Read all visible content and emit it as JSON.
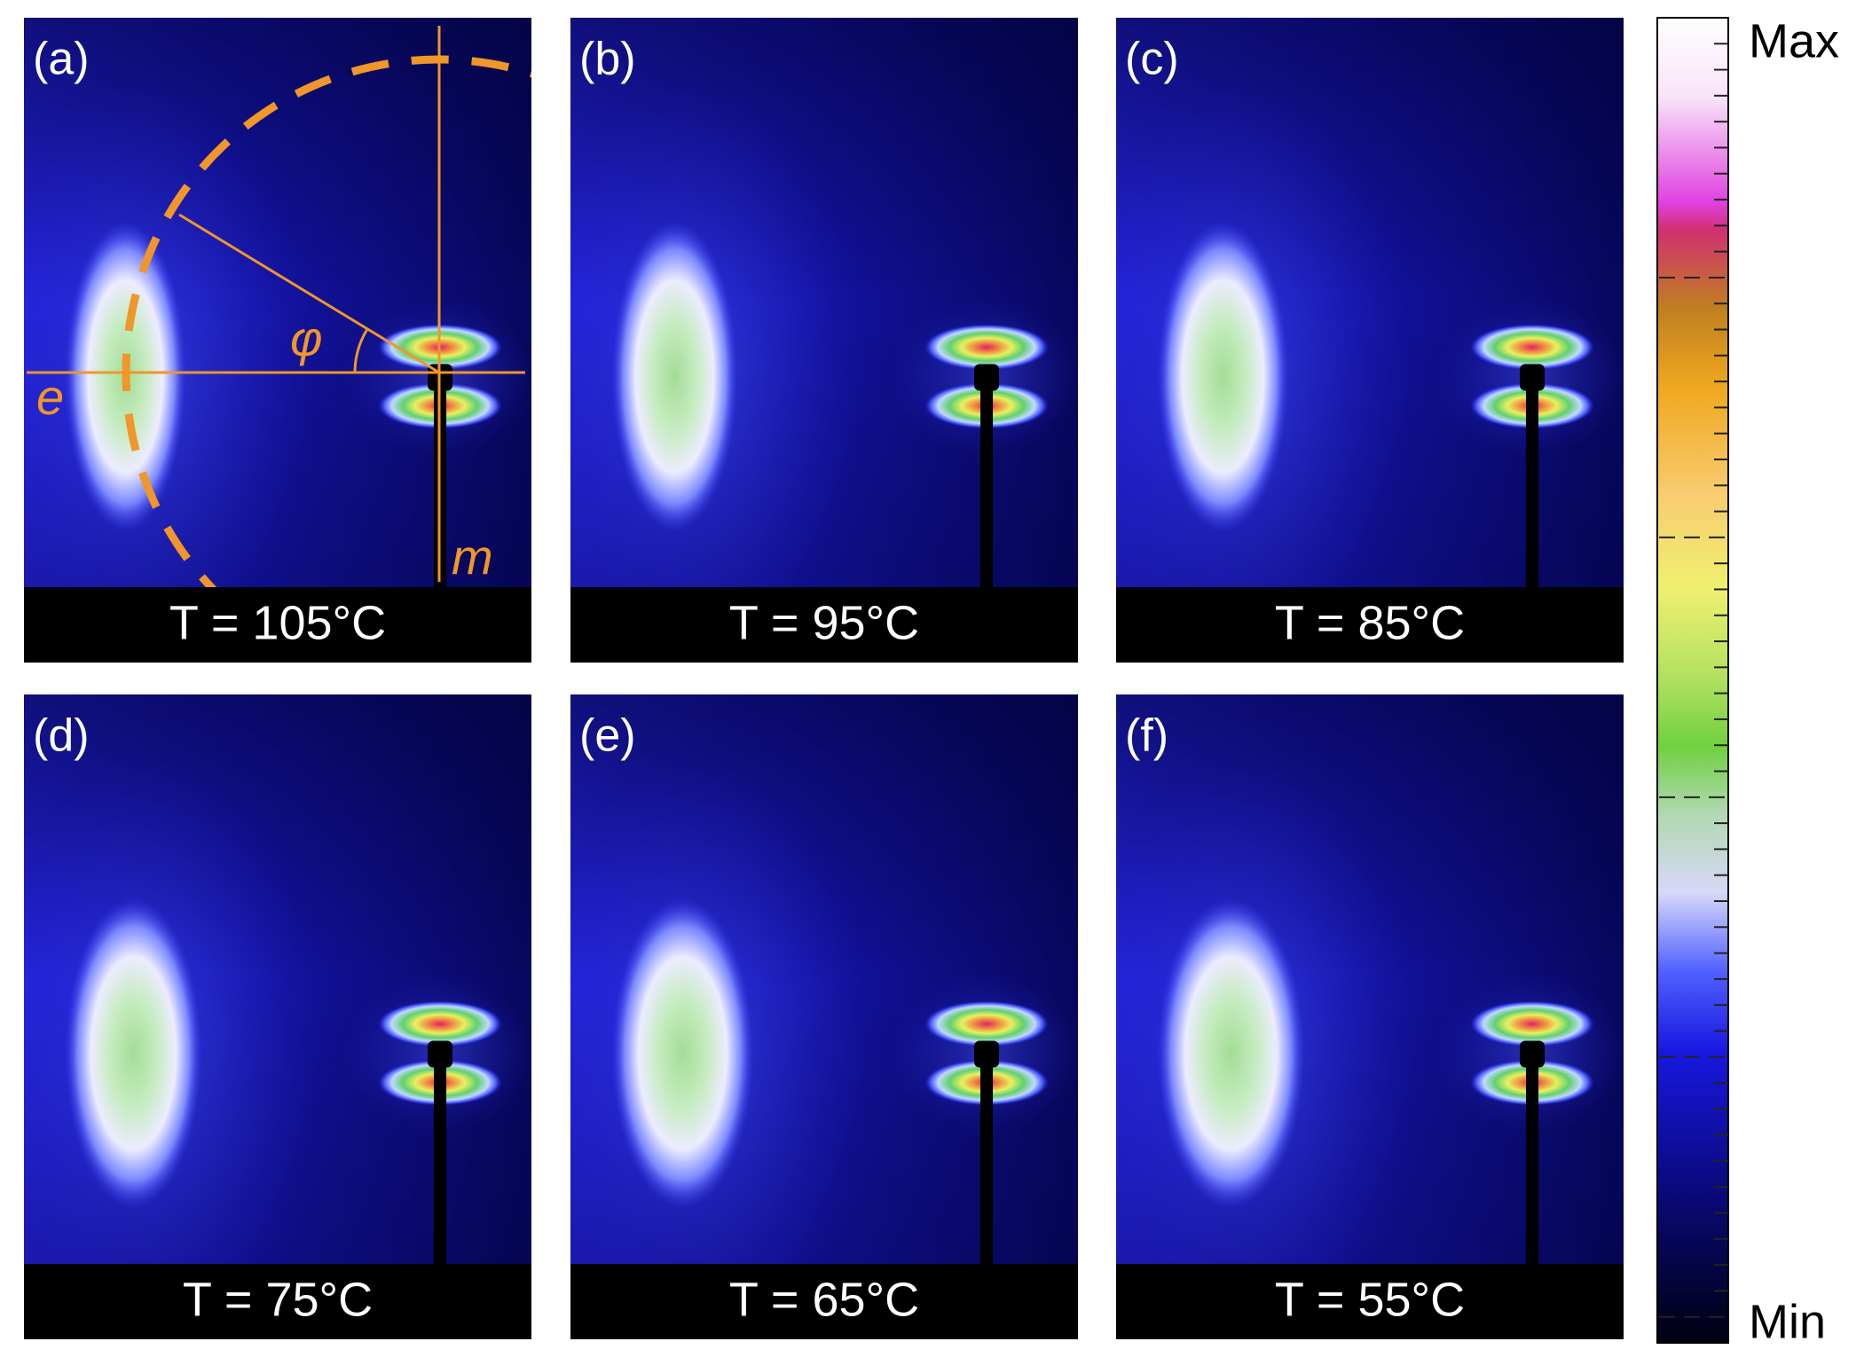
{
  "panels": [
    {
      "label": "(a)",
      "caption": "T = 105°C"
    },
    {
      "label": "(b)",
      "caption": "T = 95°C"
    },
    {
      "label": "(c)",
      "caption": "T = 85°C"
    },
    {
      "label": "(d)",
      "caption": "T = 75°C"
    },
    {
      "label": "(e)",
      "caption": "T = 65°C"
    },
    {
      "label": "(f)",
      "caption": "T = 55°C"
    }
  ],
  "annotations": {
    "phi": "φ",
    "e": "e",
    "m": "m"
  },
  "colorbar": {
    "max": "Max",
    "min": "Min"
  }
}
